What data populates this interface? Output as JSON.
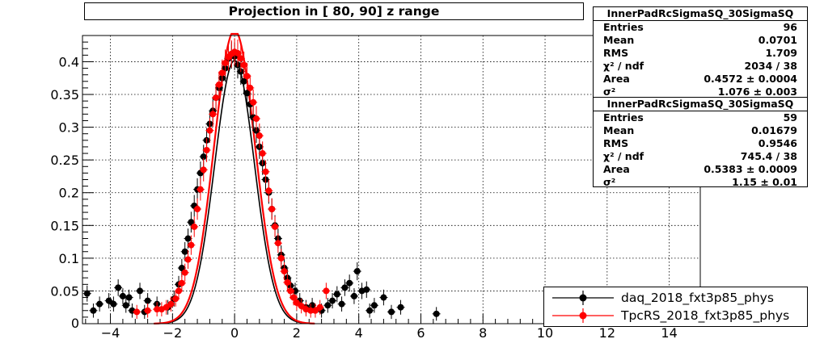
{
  "title": "Projection in [  80,  90] z range",
  "colors": {
    "data": "#000000",
    "sim": "#ff0000",
    "grid": "#000000"
  },
  "stats": [
    {
      "title": "InnerPadRcSigmaSQ_30SigmaSQ",
      "rows": [
        {
          "label": "Entries",
          "value": "96"
        },
        {
          "label": "Mean",
          "value": "0.0701"
        },
        {
          "label": "RMS",
          "value": "1.709"
        },
        {
          "label": "χ² / ndf",
          "value": "2034 / 38"
        },
        {
          "label": "Area",
          "value": "0.4572 ± 0.0004"
        },
        {
          "label": "σ²",
          "value": "1.076 ± 0.003"
        }
      ]
    },
    {
      "title": "InnerPadRcSigmaSQ_30SigmaSQ",
      "rows": [
        {
          "label": "Entries",
          "value": "59"
        },
        {
          "label": "Mean",
          "value": "0.01679"
        },
        {
          "label": "RMS",
          "value": "0.9546"
        },
        {
          "label": "χ² / ndf",
          "value": "745.4 / 38"
        },
        {
          "label": "Area",
          "value": "0.5383 ± 0.0009"
        },
        {
          "label": "σ²",
          "value": "1.15 ± 0.01"
        }
      ]
    }
  ],
  "legend": [
    {
      "label": "daq_2018_fxt3p85_phys",
      "color": "#000000"
    },
    {
      "label": "TpcRS_2018_fxt3p85_phys",
      "color": "#ff0000"
    }
  ],
  "chart_data": {
    "type": "scatter",
    "title": "Projection in [  80,  90] z range",
    "xlim": [
      -4.9,
      15
    ],
    "ylim": [
      0,
      0.44
    ],
    "grid": true,
    "legend_position": "bottom-right",
    "x_ticks": [
      -4,
      -2,
      0,
      2,
      4,
      6,
      8,
      10,
      12,
      14
    ],
    "y_ticks": [
      0.05,
      0.1,
      0.15,
      0.2,
      0.25,
      0.3,
      0.35,
      0.4
    ],
    "series": [
      {
        "name": "daq_2018_fxt3p85_phys",
        "color": "#000000",
        "points": [
          [
            -4.75,
            0.046
          ],
          [
            -4.55,
            0.02
          ],
          [
            -4.35,
            0.03
          ],
          [
            -4.05,
            0.035
          ],
          [
            -3.9,
            0.03
          ],
          [
            -3.75,
            0.055
          ],
          [
            -3.6,
            0.042
          ],
          [
            -3.5,
            0.028
          ],
          [
            -3.4,
            0.04
          ],
          [
            -3.3,
            0.02
          ],
          [
            -3.05,
            0.05
          ],
          [
            -2.9,
            0.018
          ],
          [
            -2.8,
            0.035
          ],
          [
            -2.5,
            0.03
          ],
          [
            -2.15,
            0.025
          ],
          [
            -1.95,
            0.038
          ],
          [
            -1.8,
            0.06
          ],
          [
            -1.7,
            0.085
          ],
          [
            -1.6,
            0.11
          ],
          [
            -1.5,
            0.13
          ],
          [
            -1.4,
            0.155
          ],
          [
            -1.3,
            0.18
          ],
          [
            -1.2,
            0.205
          ],
          [
            -1.1,
            0.23
          ],
          [
            -1.0,
            0.255
          ],
          [
            -0.9,
            0.28
          ],
          [
            -0.8,
            0.305
          ],
          [
            -0.7,
            0.325
          ],
          [
            -0.6,
            0.345
          ],
          [
            -0.5,
            0.36
          ],
          [
            -0.4,
            0.375
          ],
          [
            -0.3,
            0.39
          ],
          [
            -0.2,
            0.405
          ],
          [
            -0.1,
            0.41
          ],
          [
            0.0,
            0.408
          ],
          [
            0.1,
            0.395
          ],
          [
            0.2,
            0.385
          ],
          [
            0.3,
            0.37
          ],
          [
            0.4,
            0.352
          ],
          [
            0.5,
            0.335
          ],
          [
            0.6,
            0.315
          ],
          [
            0.7,
            0.295
          ],
          [
            0.8,
            0.27
          ],
          [
            0.9,
            0.245
          ],
          [
            1.0,
            0.22
          ],
          [
            1.1,
            0.2
          ],
          [
            1.2,
            0.175
          ],
          [
            1.3,
            0.15
          ],
          [
            1.4,
            0.13
          ],
          [
            1.5,
            0.105
          ],
          [
            1.6,
            0.085
          ],
          [
            1.7,
            0.07
          ],
          [
            1.8,
            0.058
          ],
          [
            1.95,
            0.05
          ],
          [
            2.1,
            0.035
          ],
          [
            2.3,
            0.025
          ],
          [
            2.5,
            0.028
          ],
          [
            2.8,
            0.02
          ],
          [
            3.0,
            0.028
          ],
          [
            3.15,
            0.035
          ],
          [
            3.3,
            0.045
          ],
          [
            3.45,
            0.03
          ],
          [
            3.55,
            0.055
          ],
          [
            3.7,
            0.062
          ],
          [
            3.85,
            0.042
          ],
          [
            3.95,
            0.08
          ],
          [
            4.1,
            0.05
          ],
          [
            4.25,
            0.052
          ],
          [
            4.35,
            0.02
          ],
          [
            4.5,
            0.028
          ],
          [
            4.8,
            0.04
          ],
          [
            5.05,
            0.018
          ],
          [
            5.35,
            0.025
          ],
          [
            6.5,
            0.015
          ]
        ]
      },
      {
        "name": "TpcRS_2018_fxt3p85_phys",
        "color": "#ff0000",
        "points": [
          [
            -3.15,
            0.018
          ],
          [
            -2.8,
            0.02
          ],
          [
            -2.5,
            0.022
          ],
          [
            -2.35,
            0.022
          ],
          [
            -2.2,
            0.025
          ],
          [
            -2.05,
            0.03
          ],
          [
            -1.9,
            0.038
          ],
          [
            -1.8,
            0.05
          ],
          [
            -1.7,
            0.062
          ],
          [
            -1.6,
            0.078
          ],
          [
            -1.5,
            0.098
          ],
          [
            -1.4,
            0.12
          ],
          [
            -1.3,
            0.148
          ],
          [
            -1.2,
            0.175
          ],
          [
            -1.1,
            0.205
          ],
          [
            -1.0,
            0.235
          ],
          [
            -0.9,
            0.265
          ],
          [
            -0.8,
            0.295
          ],
          [
            -0.7,
            0.32
          ],
          [
            -0.6,
            0.345
          ],
          [
            -0.5,
            0.365
          ],
          [
            -0.4,
            0.383
          ],
          [
            -0.3,
            0.398
          ],
          [
            -0.2,
            0.407
          ],
          [
            -0.1,
            0.412
          ],
          [
            0.0,
            0.415
          ],
          [
            0.1,
            0.413
          ],
          [
            0.2,
            0.405
          ],
          [
            0.3,
            0.395
          ],
          [
            0.4,
            0.378
          ],
          [
            0.5,
            0.36
          ],
          [
            0.6,
            0.338
          ],
          [
            0.7,
            0.313
          ],
          [
            0.8,
            0.287
          ],
          [
            0.9,
            0.26
          ],
          [
            1.0,
            0.232
          ],
          [
            1.1,
            0.203
          ],
          [
            1.2,
            0.175
          ],
          [
            1.3,
            0.148
          ],
          [
            1.4,
            0.123
          ],
          [
            1.5,
            0.1
          ],
          [
            1.6,
            0.08
          ],
          [
            1.7,
            0.063
          ],
          [
            1.8,
            0.05
          ],
          [
            1.9,
            0.04
          ],
          [
            2.0,
            0.032
          ],
          [
            2.15,
            0.027
          ],
          [
            2.3,
            0.022
          ],
          [
            2.45,
            0.02
          ],
          [
            2.6,
            0.02
          ],
          [
            2.75,
            0.025
          ],
          [
            2.95,
            0.05
          ]
        ]
      }
    ],
    "fits": [
      {
        "color": "#000000",
        "amplitude": 0.402,
        "sigma": 0.64
      },
      {
        "color": "#ff0000",
        "amplitude": 0.448,
        "sigma": 0.66
      }
    ]
  }
}
